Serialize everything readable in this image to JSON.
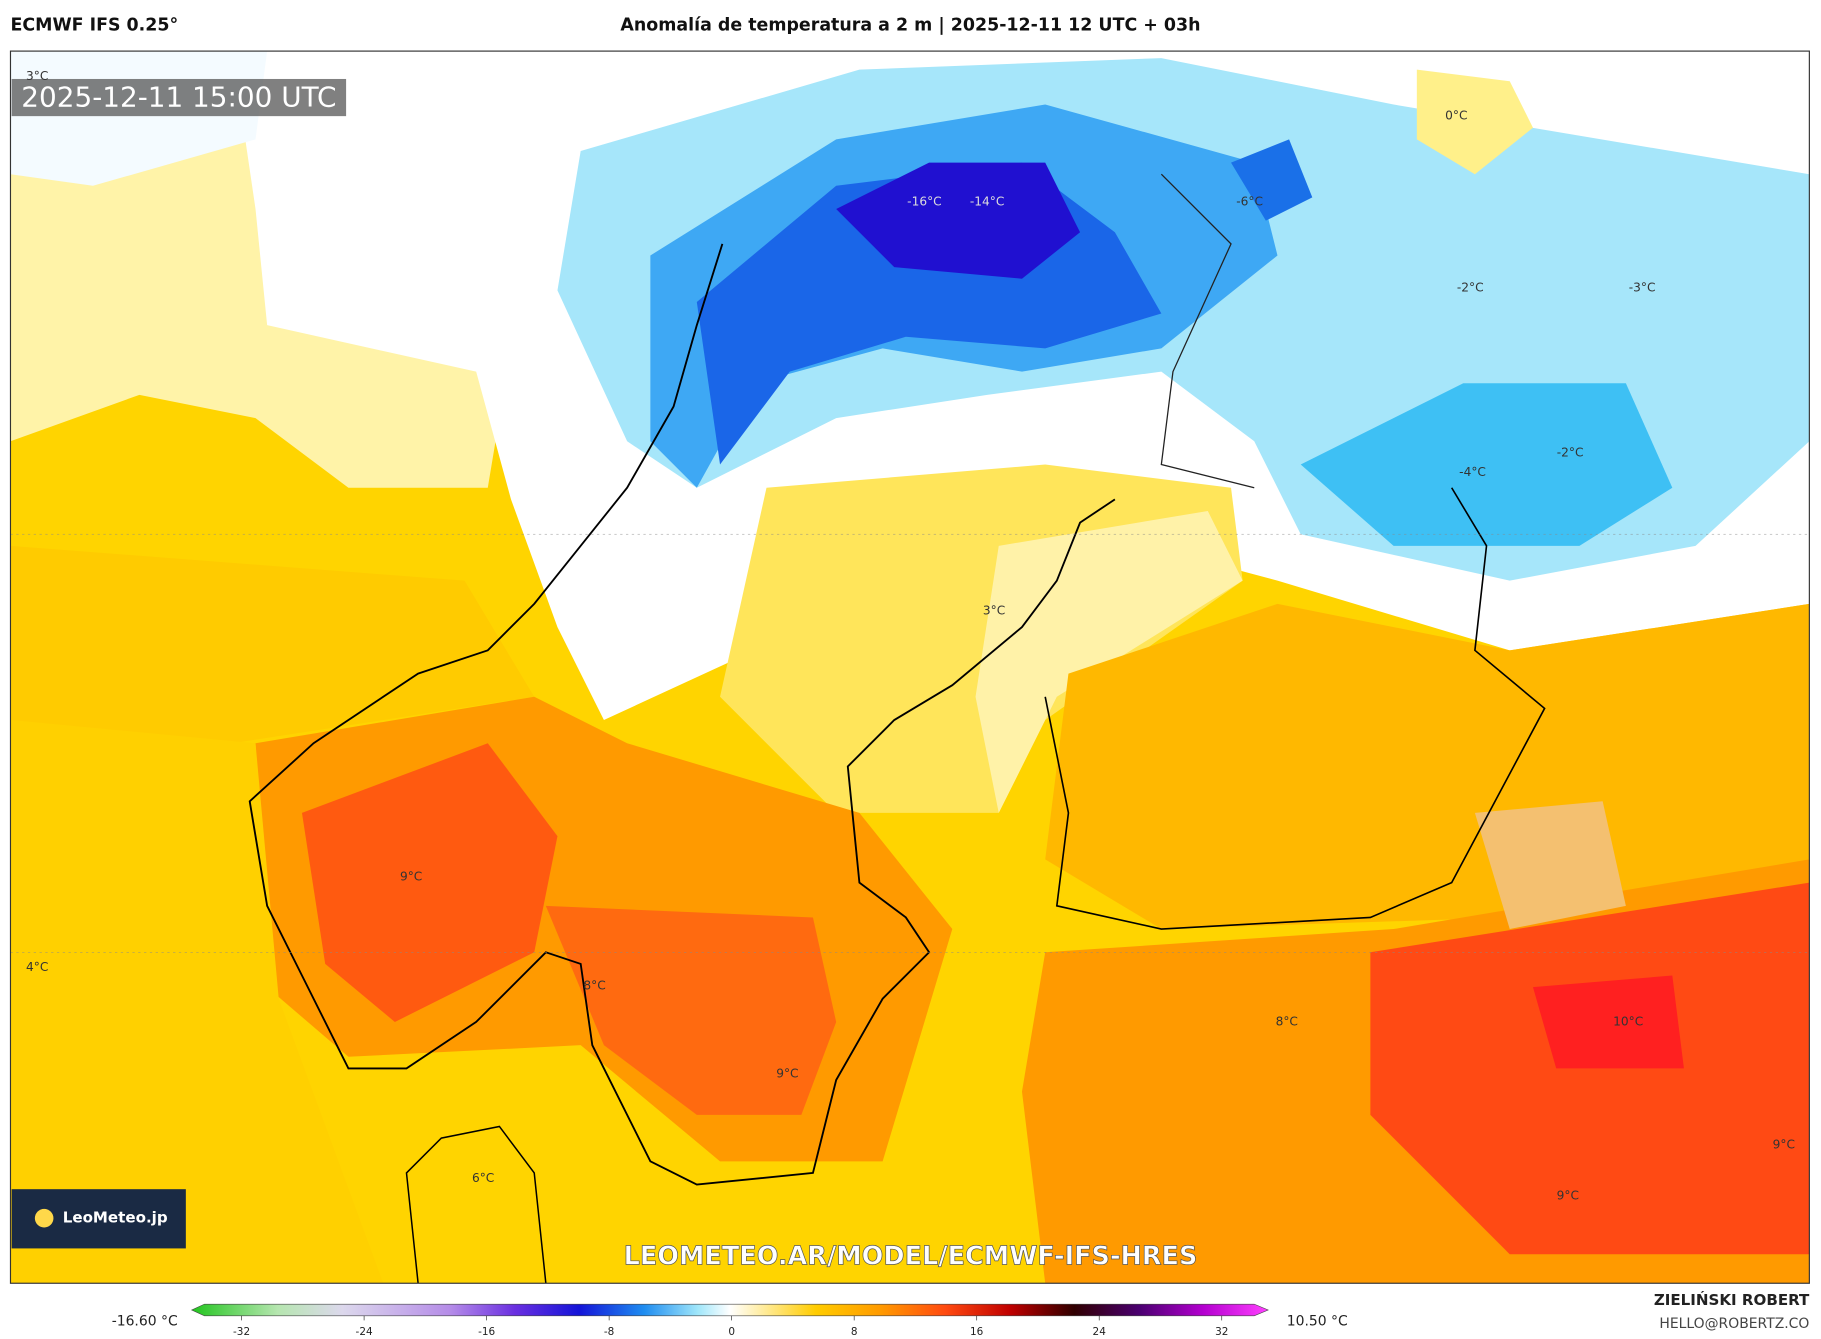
{
  "header": {
    "model": "ECMWF IFS 0.25°",
    "title": "Anomalía de temperatura a 2 m | 2025-12-11 12 UTC + 03h"
  },
  "map": {
    "timestamp": "2025-12-11 15:00 UTC",
    "watermark": "LEOMETEO.AR/MODEL/ECMWF-IFS-HRES",
    "logo": "LeoMeteo.jp",
    "labels": [
      "3°C",
      "0°C",
      "-16°C",
      "-14°C",
      "-6°C",
      "-2°C",
      "-3°C",
      "-2°C",
      "-4°C",
      "3°C",
      "9°C",
      "4°C",
      "8°C",
      "8°C",
      "10°C",
      "9°C",
      "9°C",
      "6°C",
      "9°C"
    ]
  },
  "colorbar": {
    "min_label": "-16.60 °C",
    "max_label": "10.50 °C",
    "ticks": [
      -32,
      -24,
      -16,
      -8,
      0,
      8,
      16,
      24,
      32
    ]
  },
  "footer": {
    "author": "ZIELIŃSKI ROBERT",
    "email": "HELLO@ROBERTZ.CO"
  }
}
